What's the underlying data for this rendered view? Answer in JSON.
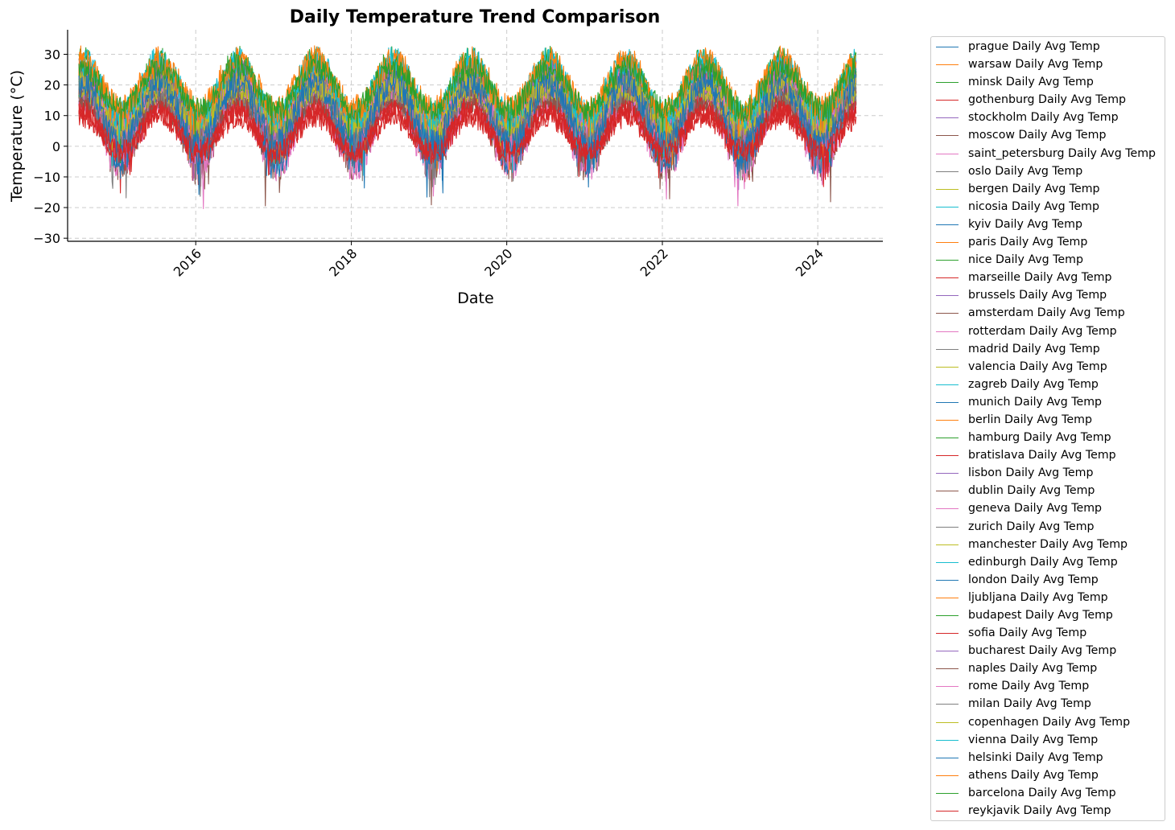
{
  "chart_data": {
    "type": "line",
    "title": "Daily Temperature Trend Comparison",
    "xlabel": "Date",
    "ylabel": "Temperature (°C)",
    "x_range": [
      "2014-07-01",
      "2024-06-30"
    ],
    "x_ticks": [
      "2016",
      "2018",
      "2020",
      "2022",
      "2024"
    ],
    "ylim": [
      -31,
      38
    ],
    "y_ticks": [
      "30",
      "20",
      "10",
      "0",
      "−10",
      "−20",
      "−30"
    ],
    "grid": true,
    "legend_placement": "outside-right",
    "series": [
      {
        "name": "prague Daily Avg Temp",
        "color": "#1f77b4",
        "mean": 13,
        "amplitude": 8,
        "noise": 2.5
      },
      {
        "name": "warsaw Daily Avg Temp",
        "color": "#ff7f0e",
        "mean": 15,
        "amplitude": 9,
        "noise": 3
      },
      {
        "name": "minsk Daily Avg Temp",
        "color": "#2ca02c",
        "mean": 12,
        "amplitude": 10,
        "noise": 3
      },
      {
        "name": "gothenburg Daily Avg Temp",
        "color": "#d62728",
        "mean": 6,
        "amplitude": 8,
        "noise": 3
      },
      {
        "name": "stockholm Daily Avg Temp",
        "color": "#9467bd",
        "mean": 9,
        "amplitude": 9,
        "noise": 3
      },
      {
        "name": "moscow Daily Avg Temp",
        "color": "#8c564b",
        "mean": 7,
        "amplitude": 12,
        "noise": 4
      },
      {
        "name": "saint_petersburg Daily Avg Temp",
        "color": "#e377c2",
        "mean": 6,
        "amplitude": 11,
        "noise": 4
      },
      {
        "name": "oslo Daily Avg Temp",
        "color": "#7f7f7f",
        "mean": 8,
        "amplitude": 10,
        "noise": 3
      },
      {
        "name": "bergen Daily Avg Temp",
        "color": "#bcbd22",
        "mean": 12,
        "amplitude": 6,
        "noise": 2.5
      },
      {
        "name": "nicosia Daily Avg Temp",
        "color": "#17becf",
        "mean": 18,
        "amplitude": 8,
        "noise": 2.5
      },
      {
        "name": "kyiv Daily Avg Temp",
        "color": "#1f77b4",
        "mean": 9,
        "amplitude": 12,
        "noise": 4
      },
      {
        "name": "paris Daily Avg Temp",
        "color": "#ff7f0e",
        "mean": 16,
        "amplitude": 7,
        "noise": 2.5
      },
      {
        "name": "nice Daily Avg Temp",
        "color": "#2ca02c",
        "mean": 17,
        "amplitude": 7,
        "noise": 2.5
      },
      {
        "name": "marseille Daily Avg Temp",
        "color": "#d62728",
        "mean": 15,
        "amplitude": 8,
        "noise": 2.5
      },
      {
        "name": "brussels Daily Avg Temp",
        "color": "#9467bd",
        "mean": 13,
        "amplitude": 7,
        "noise": 2.5
      },
      {
        "name": "amsterdam Daily Avg Temp",
        "color": "#8c564b",
        "mean": 12,
        "amplitude": 7,
        "noise": 2.5
      },
      {
        "name": "rotterdam Daily Avg Temp",
        "color": "#e377c2",
        "mean": 12,
        "amplitude": 7,
        "noise": 2.5
      },
      {
        "name": "madrid Daily Avg Temp",
        "color": "#7f7f7f",
        "mean": 16,
        "amplitude": 9,
        "noise": 2.5
      },
      {
        "name": "valencia Daily Avg Temp",
        "color": "#bcbd22",
        "mean": 17,
        "amplitude": 6,
        "noise": 2
      },
      {
        "name": "zagreb Daily Avg Temp",
        "color": "#17becf",
        "mean": 14,
        "amplitude": 10,
        "noise": 3
      },
      {
        "name": "munich Daily Avg Temp",
        "color": "#1f77b4",
        "mean": 12,
        "amplitude": 9,
        "noise": 3
      },
      {
        "name": "berlin Daily Avg Temp",
        "color": "#ff7f0e",
        "mean": 14,
        "amplitude": 9,
        "noise": 3
      },
      {
        "name": "hamburg Daily Avg Temp",
        "color": "#2ca02c",
        "mean": 13,
        "amplitude": 8,
        "noise": 3
      },
      {
        "name": "bratislava Daily Avg Temp",
        "color": "#d62728",
        "mean": 8,
        "amplitude": 6,
        "noise": 2.5
      },
      {
        "name": "lisbon Daily Avg Temp",
        "color": "#9467bd",
        "mean": 14,
        "amplitude": 6,
        "noise": 2
      },
      {
        "name": "dublin Daily Avg Temp",
        "color": "#8c564b",
        "mean": 9,
        "amplitude": 6,
        "noise": 2.5
      },
      {
        "name": "geneva Daily Avg Temp",
        "color": "#e377c2",
        "mean": 11,
        "amplitude": 9,
        "noise": 3
      },
      {
        "name": "zurich Daily Avg Temp",
        "color": "#7f7f7f",
        "mean": 10,
        "amplitude": 9,
        "noise": 3
      },
      {
        "name": "manchester Daily Avg Temp",
        "color": "#bcbd22",
        "mean": 13,
        "amplitude": 6,
        "noise": 2.5
      },
      {
        "name": "edinburgh Daily Avg Temp",
        "color": "#17becf",
        "mean": 15,
        "amplitude": 9,
        "noise": 3
      },
      {
        "name": "london Daily Avg Temp",
        "color": "#1f77b4",
        "mean": 14,
        "amplitude": 7,
        "noise": 2.5
      },
      {
        "name": "ljubljana Daily Avg Temp",
        "color": "#ff7f0e",
        "mean": 16,
        "amplitude": 10,
        "noise": 3
      },
      {
        "name": "budapest Daily Avg Temp",
        "color": "#2ca02c",
        "mean": 18,
        "amplitude": 10,
        "noise": 3
      },
      {
        "name": "sofia Daily Avg Temp",
        "color": "#d62728",
        "mean": 5,
        "amplitude": 6,
        "noise": 2.5
      },
      {
        "name": "bucharest Daily Avg Temp",
        "color": "#9467bd",
        "mean": 14,
        "amplitude": 11,
        "noise": 3
      },
      {
        "name": "naples Daily Avg Temp",
        "color": "#8c564b",
        "mean": 13,
        "amplitude": 8,
        "noise": 3
      },
      {
        "name": "rome Daily Avg Temp",
        "color": "#e377c2",
        "mean": 14,
        "amplitude": 8,
        "noise": 3
      },
      {
        "name": "milan Daily Avg Temp",
        "color": "#7f7f7f",
        "mean": 13,
        "amplitude": 9,
        "noise": 3
      },
      {
        "name": "copenhagen Daily Avg Temp",
        "color": "#bcbd22",
        "mean": 14,
        "amplitude": 7,
        "noise": 2.5
      },
      {
        "name": "vienna Daily Avg Temp",
        "color": "#17becf",
        "mean": 19,
        "amplitude": 9,
        "noise": 3
      },
      {
        "name": "helsinki Daily Avg Temp",
        "color": "#1f77b4",
        "mean": 11,
        "amplitude": 10,
        "noise": 3
      },
      {
        "name": "athens Daily Avg Temp",
        "color": "#ff7f0e",
        "mean": 20,
        "amplitude": 8,
        "noise": 3
      },
      {
        "name": "barcelona Daily Avg Temp",
        "color": "#2ca02c",
        "mean": 19,
        "amplitude": 7,
        "noise": 2.5
      },
      {
        "name": "reykjavik Daily Avg Temp",
        "color": "#d62728",
        "mean": 4,
        "amplitude": 6,
        "noise": 2.5
      }
    ]
  }
}
